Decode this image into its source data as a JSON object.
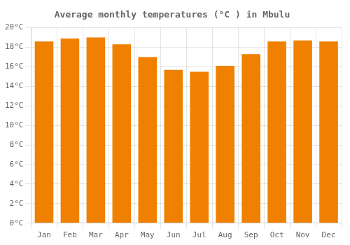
{
  "chart_data": {
    "type": "bar",
    "title": "Average monthly temperatures (°C ) in Mbulu",
    "categories": [
      "Jan",
      "Feb",
      "Mar",
      "Apr",
      "May",
      "Jun",
      "Jul",
      "Aug",
      "Sep",
      "Oct",
      "Nov",
      "Dec"
    ],
    "values": [
      18.6,
      18.9,
      19.0,
      18.3,
      17.0,
      15.7,
      15.5,
      16.1,
      17.3,
      18.6,
      18.7,
      18.6
    ],
    "color": "#F08000",
    "ylim": [
      0,
      20
    ],
    "yticks": [
      {
        "value": 0,
        "label": "0°C"
      },
      {
        "value": 2,
        "label": "2°C"
      },
      {
        "value": 4,
        "label": "4°C"
      },
      {
        "value": 6,
        "label": "6°C"
      },
      {
        "value": 8,
        "label": "8°C"
      },
      {
        "value": 10,
        "label": "10°C"
      },
      {
        "value": 12,
        "label": "12°C"
      },
      {
        "value": 14,
        "label": "14°C"
      },
      {
        "value": 16,
        "label": "16°C"
      },
      {
        "value": 18,
        "label": "18°C"
      },
      {
        "value": 20,
        "label": "20°C"
      }
    ],
    "grid": true
  }
}
